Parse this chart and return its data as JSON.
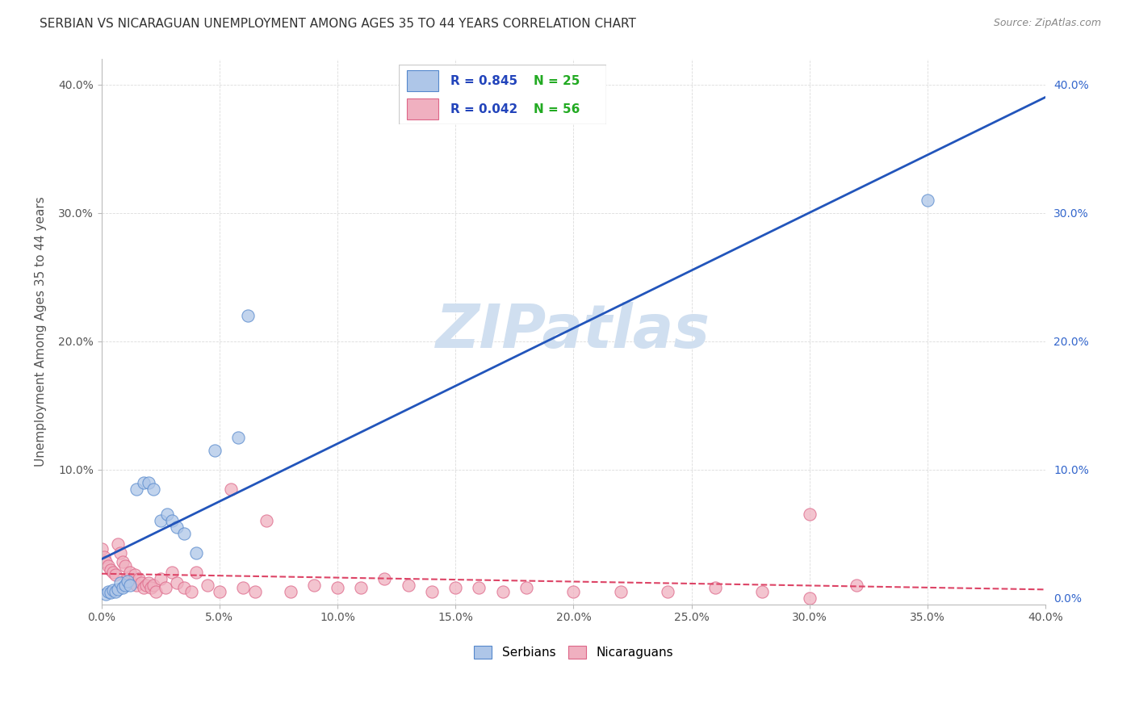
{
  "title": "SERBIAN VS NICARAGUAN UNEMPLOYMENT AMONG AGES 35 TO 44 YEARS CORRELATION CHART",
  "source": "Source: ZipAtlas.com",
  "ylabel": "Unemployment Among Ages 35 to 44 years",
  "xlim": [
    0.0,
    0.4
  ],
  "ylim": [
    -0.005,
    0.42
  ],
  "xticks": [
    0.0,
    0.05,
    0.1,
    0.15,
    0.2,
    0.25,
    0.3,
    0.35,
    0.4
  ],
  "yticks_left": [
    0.1,
    0.2,
    0.3,
    0.4
  ],
  "yticks_right": [
    0.0,
    0.1,
    0.2,
    0.3,
    0.4
  ],
  "serbian_color": "#aec6e8",
  "serbian_edge_color": "#5588cc",
  "nicaraguan_color": "#f0b0c0",
  "nicaraguan_edge_color": "#dd6688",
  "serbian_line_color": "#2255bb",
  "nicaraguan_line_color": "#dd4466",
  "serbian_R": 0.845,
  "serbian_N": 25,
  "nicaraguan_R": 0.042,
  "nicaraguan_N": 56,
  "watermark": "ZIPatlas",
  "watermark_color": "#d0dff0",
  "background_color": "#ffffff",
  "grid_color": "#cccccc",
  "legend_R_color": "#2244bb",
  "legend_N_color": "#22aa22",
  "right_tick_color": "#3366cc",
  "serbian_x": [
    0.002,
    0.003,
    0.004,
    0.005,
    0.006,
    0.007,
    0.008,
    0.009,
    0.01,
    0.011,
    0.012,
    0.015,
    0.018,
    0.02,
    0.022,
    0.025,
    0.028,
    0.03,
    0.032,
    0.035,
    0.04,
    0.048,
    0.058,
    0.062,
    0.35
  ],
  "serbian_y": [
    0.003,
    0.005,
    0.004,
    0.006,
    0.005,
    0.007,
    0.012,
    0.008,
    0.01,
    0.013,
    0.01,
    0.085,
    0.09,
    0.09,
    0.085,
    0.06,
    0.065,
    0.06,
    0.055,
    0.05,
    0.035,
    0.115,
    0.125,
    0.22,
    0.31
  ],
  "nicaraguan_x": [
    0.0,
    0.001,
    0.002,
    0.003,
    0.004,
    0.005,
    0.006,
    0.007,
    0.008,
    0.009,
    0.01,
    0.011,
    0.012,
    0.013,
    0.014,
    0.015,
    0.016,
    0.017,
    0.018,
    0.019,
    0.02,
    0.021,
    0.022,
    0.023,
    0.025,
    0.027,
    0.03,
    0.032,
    0.035,
    0.038,
    0.04,
    0.045,
    0.05,
    0.055,
    0.06,
    0.065,
    0.07,
    0.08,
    0.09,
    0.1,
    0.11,
    0.12,
    0.13,
    0.14,
    0.15,
    0.16,
    0.17,
    0.18,
    0.2,
    0.22,
    0.24,
    0.26,
    0.28,
    0.3,
    0.32,
    0.3
  ],
  "nicaraguan_y": [
    0.038,
    0.032,
    0.028,
    0.025,
    0.022,
    0.02,
    0.018,
    0.042,
    0.035,
    0.028,
    0.025,
    0.015,
    0.02,
    0.012,
    0.018,
    0.01,
    0.015,
    0.012,
    0.008,
    0.01,
    0.012,
    0.008,
    0.01,
    0.005,
    0.015,
    0.008,
    0.02,
    0.012,
    0.008,
    0.005,
    0.02,
    0.01,
    0.005,
    0.085,
    0.008,
    0.005,
    0.06,
    0.005,
    0.01,
    0.008,
    0.008,
    0.015,
    0.01,
    0.005,
    0.008,
    0.008,
    0.005,
    0.008,
    0.005,
    0.005,
    0.005,
    0.008,
    0.005,
    0.065,
    0.01,
    0.0
  ]
}
